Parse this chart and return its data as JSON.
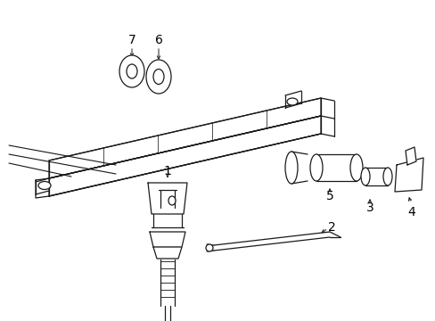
{
  "background_color": "#ffffff",
  "line_color": "#1a1a1a",
  "label_color": "#000000",
  "fig_width": 4.89,
  "fig_height": 3.6,
  "dpi": 100
}
